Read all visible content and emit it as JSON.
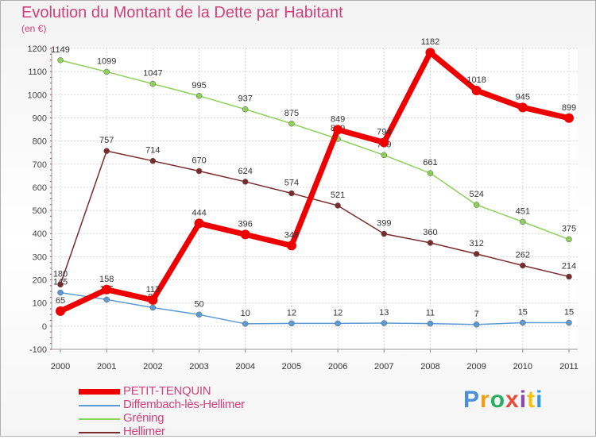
{
  "title": "Evolution du Montant de la Dette par Habitant",
  "unit": "(en €)",
  "brand": {
    "letters": [
      "P",
      "r",
      "o",
      "x",
      "i",
      "t",
      "i"
    ],
    "colors": [
      "#4a90d9",
      "#f39c12",
      "#27ae60",
      "#e74c3c",
      "#8e44ad",
      "#f1c40f",
      "#3498db"
    ]
  },
  "chart_data": {
    "type": "line",
    "title": "Evolution du Montant de la Dette par Habitant",
    "ylabel": "(en €)",
    "xlabel": "",
    "x": [
      "2000",
      "2001",
      "2002",
      "2003",
      "2004",
      "2005",
      "2006",
      "2007",
      "2008",
      "2009",
      "2010",
      "2011"
    ],
    "ylim": [
      -100,
      1200
    ],
    "yticks": [
      "-100",
      "0",
      "100",
      "200",
      "300",
      "400",
      "500",
      "600",
      "700",
      "800",
      "900",
      "1000",
      "1100",
      "1200"
    ],
    "grid": true,
    "legend_position": "bottom-left",
    "series": [
      {
        "name": "Diffembach-lès-Hellimer",
        "color": "#5b9bd5",
        "values": [
          145,
          115,
          80,
          50,
          10,
          12,
          12,
          13,
          11,
          7,
          15,
          15
        ],
        "labels": [
          "145",
          "115",
          "80",
          "50",
          "10",
          "12",
          "12",
          "13",
          "11",
          "7",
          "15",
          "15"
        ]
      },
      {
        "name": "Gréning",
        "color": "#8ed15a",
        "values": [
          1149,
          1099,
          1047,
          995,
          937,
          875,
          809,
          739,
          661,
          524,
          451,
          375
        ],
        "labels": [
          "1149",
          "1099",
          "1047",
          "995",
          "937",
          "875",
          "809",
          "739",
          "661",
          "524",
          "451",
          "375"
        ]
      },
      {
        "name": "Hellimer",
        "color": "#7a2b2b",
        "values": [
          180,
          757,
          714,
          670,
          624,
          574,
          521,
          399,
          360,
          312,
          262,
          214
        ],
        "labels": [
          "180",
          "757",
          "714",
          "670",
          "624",
          "574",
          "521",
          "399",
          "360",
          "312",
          "262",
          "214"
        ]
      },
      {
        "name": "PETIT-TENQUIN",
        "color": "#ee0000",
        "values": [
          65,
          158,
          113,
          444,
          396,
          348,
          849,
          794,
          1182,
          1018,
          945,
          899
        ],
        "labels": [
          "65",
          "158",
          "113",
          "444",
          "396",
          "348",
          "849",
          "794",
          "1182",
          "1018",
          "945",
          "899"
        ]
      }
    ],
    "legend": [
      "PETIT-TENQUIN",
      "Diffembach-lès-Hellimer",
      "Gréning",
      "Hellimer"
    ]
  }
}
